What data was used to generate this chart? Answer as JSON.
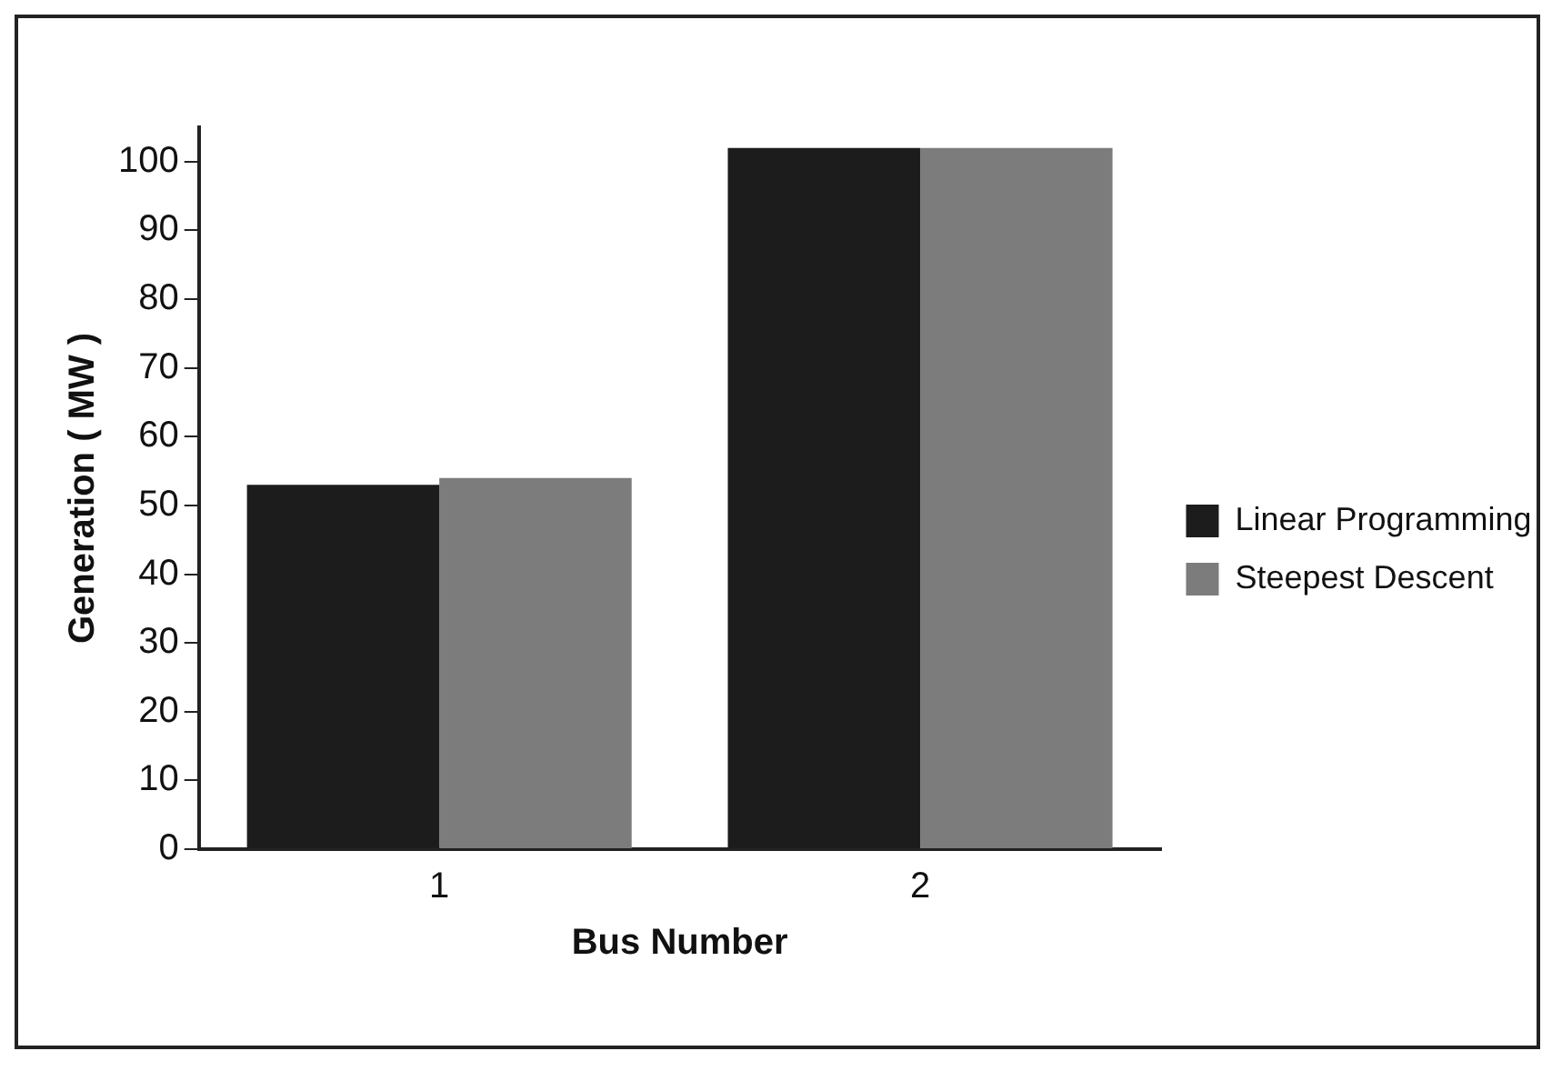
{
  "chart_data": {
    "type": "bar",
    "xlabel": "Bus Number",
    "ylabel": "Generation ( MW )",
    "categories": [
      "1",
      "2"
    ],
    "series": [
      {
        "name": "Linear Programming",
        "color": "#1c1c1c",
        "values": [
          53,
          102
        ]
      },
      {
        "name": "Steepest Descent",
        "color": "#7c7c7c",
        "values": [
          54,
          102
        ]
      }
    ],
    "ylim": [
      0,
      105
    ],
    "yticks": [
      0,
      10,
      20,
      30,
      40,
      50,
      60,
      70,
      80,
      90,
      100
    ],
    "grid": false,
    "legend": "right"
  }
}
